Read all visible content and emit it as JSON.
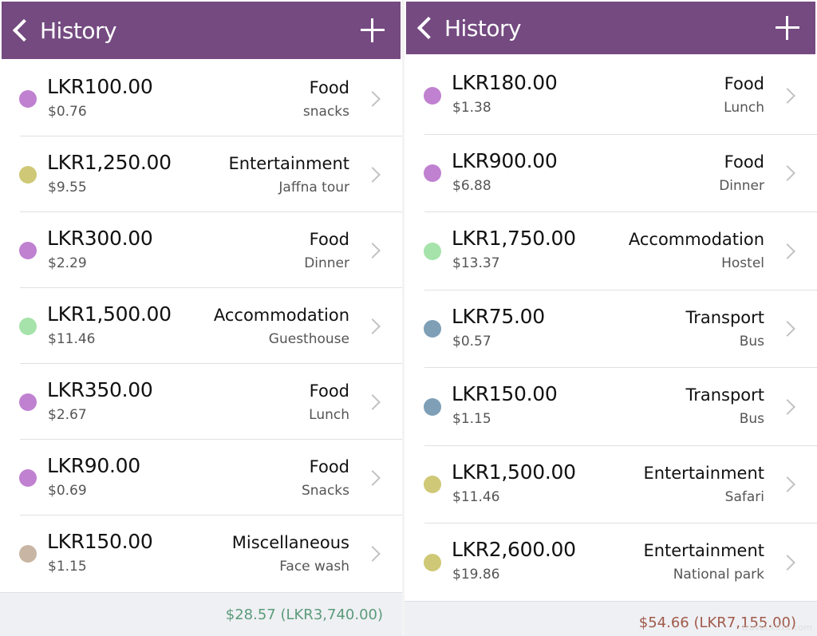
{
  "left": {
    "title": "History",
    "rows": [
      {
        "amount": "LKR100.00",
        "usd": "$0.76",
        "category": "Food",
        "note": "snacks",
        "color": "#c081d0"
      },
      {
        "amount": "LKR1,250.00",
        "usd": "$9.55",
        "category": "Entertainment",
        "note": "Jaffna tour",
        "color": "#cfc876"
      },
      {
        "amount": "LKR300.00",
        "usd": "$2.29",
        "category": "Food",
        "note": "Dinner",
        "color": "#c081d0"
      },
      {
        "amount": "LKR1,500.00",
        "usd": "$11.46",
        "category": "Accommodation",
        "note": "Guesthouse",
        "color": "#a6e3ab"
      },
      {
        "amount": "LKR350.00",
        "usd": "$2.67",
        "category": "Food",
        "note": "Lunch",
        "color": "#c081d0"
      },
      {
        "amount": "LKR90.00",
        "usd": "$0.69",
        "category": "Food",
        "note": "Snacks",
        "color": "#c081d0"
      },
      {
        "amount": "LKR150.00",
        "usd": "$1.15",
        "category": "Miscellaneous",
        "note": "Face wash",
        "color": "#c8b5a3"
      }
    ],
    "total": "$28.57  (LKR3,740.00)"
  },
  "right": {
    "title": "History",
    "rows": [
      {
        "amount": "LKR180.00",
        "usd": "$1.38",
        "category": "Food",
        "note": "Lunch",
        "color": "#c081d0"
      },
      {
        "amount": "LKR900.00",
        "usd": "$6.88",
        "category": "Food",
        "note": "Dinner",
        "color": "#c081d0"
      },
      {
        "amount": "LKR1,750.00",
        "usd": "$13.37",
        "category": "Accommodation",
        "note": "Hostel",
        "color": "#a6e3ab"
      },
      {
        "amount": "LKR75.00",
        "usd": "$0.57",
        "category": "Transport",
        "note": "Bus",
        "color": "#7e9fb6"
      },
      {
        "amount": "LKR150.00",
        "usd": "$1.15",
        "category": "Transport",
        "note": "Bus",
        "color": "#7e9fb6"
      },
      {
        "amount": "LKR1,500.00",
        "usd": "$11.46",
        "category": "Entertainment",
        "note": "Safari",
        "color": "#cfc876"
      },
      {
        "amount": "LKR2,600.00",
        "usd": "$19.86",
        "category": "Entertainment",
        "note": "National park",
        "color": "#cfc876"
      }
    ],
    "total": "$54.66  (LKR7,155.00)"
  },
  "watermark": "travel.klixx.com",
  "colors": {
    "navbar": "#744a80",
    "left_total": "#5b9b7a",
    "right_total": "#a05a4a"
  },
  "icons": {
    "back": "chevron-left-icon",
    "add": "plus-icon",
    "disclosure": "chevron-right-icon",
    "category_marker": "colored-dot-icon"
  }
}
